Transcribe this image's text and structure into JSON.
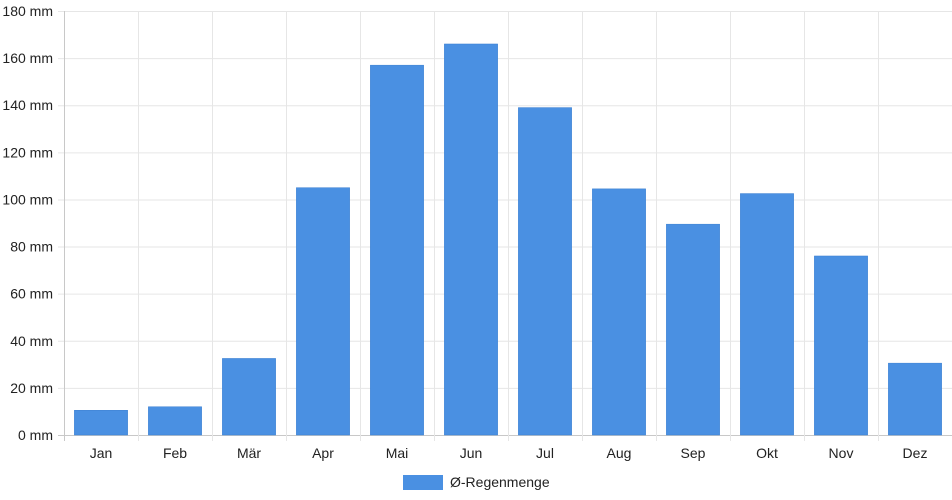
{
  "chart_data": {
    "type": "bar",
    "categories": [
      "Jan",
      "Feb",
      "Mär",
      "Apr",
      "Mai",
      "Jun",
      "Jul",
      "Aug",
      "Sep",
      "Okt",
      "Nov",
      "Dez"
    ],
    "series": [
      {
        "name": "Ø-Regenmenge",
        "values": [
          10.5,
          12,
          32.5,
          105,
          157,
          166,
          139,
          104.5,
          89.5,
          102.5,
          76,
          30.5
        ]
      }
    ],
    "ylim": [
      0,
      180
    ],
    "y_ticks": [
      0,
      20,
      40,
      60,
      80,
      100,
      120,
      140,
      160,
      180
    ],
    "y_tick_labels": [
      "0 mm",
      "20 mm",
      "40 mm",
      "60 mm",
      "80 mm",
      "100 mm",
      "120 mm",
      "140 mm",
      "160 mm",
      "180 mm"
    ],
    "grid": true,
    "legend_position": "bottom-center",
    "colors": {
      "bar": "#4a90e2",
      "grid": "#e6e6e6",
      "axis": "#c8c8c8"
    }
  }
}
